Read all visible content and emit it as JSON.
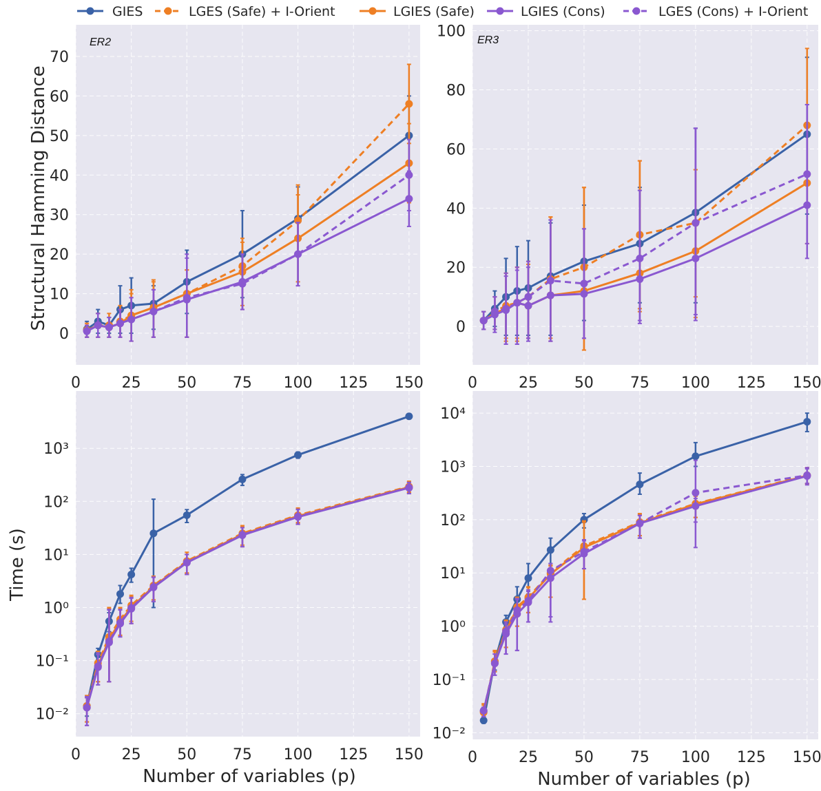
{
  "colors": {
    "blue": "#3a62a7",
    "orange": "#ee7f24",
    "purple": "#8a58d0",
    "plot_bg": "#e7e6f0",
    "grid": "#ffffff"
  },
  "legend": [
    {
      "label": "GIES",
      "color": "#3a62a7",
      "dashed": false
    },
    {
      "label": "LGES (Safe) + I-Orient",
      "color": "#ee7f24",
      "dashed": true
    },
    {
      "label": "LGIES (Safe)",
      "color": "#ee7f24",
      "dashed": false
    },
    {
      "label": "LGIES (Cons)",
      "color": "#8a58d0",
      "dashed": false
    },
    {
      "label": "LGES (Cons) + I-Orient",
      "color": "#8a58d0",
      "dashed": true
    }
  ],
  "labels": {
    "ylabel_top": "Structural Hamming Distance",
    "ylabel_bottom": "Time (s)",
    "xlabel": "Number of variables (p)"
  },
  "chart_data": [
    {
      "id": "er2_shd",
      "type": "line",
      "title": "ER2",
      "yscale": "linear",
      "xlim": [
        0,
        155
      ],
      "ylim": [
        -8,
        78
      ],
      "xticks": [
        0,
        25,
        50,
        75,
        100,
        125,
        150
      ],
      "yticks": [
        0,
        10,
        20,
        30,
        40,
        50,
        60,
        70
      ],
      "x": [
        5,
        10,
        15,
        20,
        25,
        35,
        50,
        75,
        100,
        150
      ],
      "series": [
        {
          "name": "GIES",
          "values": [
            1.0,
            3.0,
            2.0,
            6.0,
            7.0,
            7.5,
            13.0,
            20.0,
            29.0,
            50.0
          ],
          "lower": [
            -1,
            0,
            0,
            0,
            0,
            1,
            5,
            9,
            20,
            40
          ],
          "upper": [
            3,
            6,
            4,
            12,
            14,
            12,
            21,
            31,
            37,
            60
          ]
        },
        {
          "name": "LGES (Safe) + I-Orient",
          "values": [
            0.8,
            2.0,
            2.0,
            3.0,
            4.5,
            6.5,
            10.0,
            17.0,
            28.5,
            58.0
          ],
          "lower": [
            -1,
            -1,
            -1,
            -1,
            -2,
            -1,
            -1,
            6,
            20,
            48
          ],
          "upper": [
            2.5,
            5,
            5,
            7,
            11,
            13.5,
            16,
            24,
            37.5,
            68
          ]
        },
        {
          "name": "LGIES (Safe)",
          "values": [
            0.7,
            2.0,
            1.5,
            2.5,
            4.5,
            6.5,
            10.0,
            15.5,
            24.0,
            43.0
          ],
          "lower": [
            -1,
            -1,
            -1,
            -1,
            -2,
            -1,
            -1,
            7,
            13,
            33
          ],
          "upper": [
            2.5,
            5,
            4,
            6,
            10,
            13,
            16,
            23,
            35,
            53
          ]
        },
        {
          "name": "LGIES (Cons)",
          "values": [
            0.5,
            2.0,
            1.5,
            2.5,
            3.5,
            5.5,
            8.5,
            13.0,
            20.0,
            34.0
          ],
          "lower": [
            -1,
            -1,
            -1,
            -1,
            -2,
            -1,
            -1,
            6,
            12,
            27
          ],
          "upper": [
            2,
            5,
            4,
            6,
            9,
            11,
            20,
            20,
            28,
            41
          ]
        },
        {
          "name": "LGES (Cons) + I-Orient",
          "values": [
            0.6,
            2.0,
            1.5,
            2.5,
            3.5,
            5.5,
            9.0,
            12.5,
            20.0,
            40.0
          ],
          "lower": [
            -1,
            -1,
            -1,
            -1,
            -2,
            -1,
            -1,
            6,
            12,
            31
          ],
          "upper": [
            2,
            5,
            4,
            6,
            9,
            11,
            19,
            20,
            28,
            49
          ]
        }
      ]
    },
    {
      "id": "er3_shd",
      "type": "line",
      "title": "ER3",
      "yscale": "linear",
      "xlim": [
        0,
        155
      ],
      "ylim": [
        -13,
        102
      ],
      "xticks": [
        0,
        25,
        50,
        75,
        100,
        125,
        150
      ],
      "yticks": [
        0,
        20,
        40,
        60,
        80,
        100
      ],
      "x": [
        5,
        10,
        15,
        20,
        25,
        35,
        50,
        75,
        100,
        150
      ],
      "series": [
        {
          "name": "GIES",
          "values": [
            2,
            6,
            10,
            12,
            13,
            17,
            22,
            28,
            38.5,
            65
          ],
          "lower": [
            -1,
            0,
            -3,
            -3,
            -3,
            -3,
            2,
            8,
            8,
            38
          ],
          "upper": [
            5,
            12,
            23,
            27,
            29,
            35,
            41,
            47,
            67,
            91
          ]
        },
        {
          "name": "LGES (Safe) + I-Orient",
          "values": [
            2,
            5,
            7,
            8,
            10,
            16,
            20,
            31,
            35,
            68
          ],
          "lower": [
            -1,
            -1,
            -4,
            -4,
            -4,
            -4,
            -8,
            6,
            3,
            41
          ],
          "upper": [
            5,
            10,
            18,
            20,
            22,
            37,
            47,
            56,
            53,
            94
          ]
        },
        {
          "name": "LGIES (Safe)",
          "values": [
            2,
            4.5,
            6,
            8,
            7,
            10.5,
            12,
            18,
            25.5,
            48.5
          ],
          "lower": [
            -1,
            -1,
            -5,
            -5,
            -4,
            -5,
            -8,
            5,
            10,
            28
          ],
          "upper": [
            5,
            10,
            18,
            20,
            21,
            37,
            47,
            56,
            53,
            68
          ]
        },
        {
          "name": "LGIES (Cons)",
          "values": [
            2,
            4,
            5.5,
            8,
            7,
            10.5,
            11,
            16,
            23,
            41
          ],
          "lower": [
            -1,
            -2,
            -6,
            -6,
            -5,
            -5,
            -4,
            1,
            2,
            23
          ],
          "upper": [
            5,
            10,
            17,
            19,
            20,
            36,
            33,
            46,
            67,
            75
          ]
        },
        {
          "name": "LGES (Cons) + I-Orient",
          "values": [
            2,
            5,
            6,
            8,
            10,
            15.5,
            14.5,
            23,
            35,
            51.5
          ],
          "lower": [
            -1,
            -1,
            -6,
            -6,
            -4,
            -5,
            -4,
            2,
            4,
            28
          ],
          "upper": [
            5,
            10,
            18,
            20,
            22,
            36,
            33,
            46,
            67,
            75
          ]
        }
      ]
    },
    {
      "id": "er2_time",
      "type": "line",
      "title": "",
      "yscale": "log",
      "xlim": [
        0,
        155
      ],
      "ylim": [
        0.0037,
        12000
      ],
      "xticks": [
        0,
        25,
        50,
        75,
        100,
        125,
        150
      ],
      "yticks": [
        0.01,
        0.1,
        1,
        10,
        100,
        1000
      ],
      "x": [
        5,
        10,
        15,
        20,
        25,
        35,
        50,
        75,
        100,
        150
      ],
      "series": [
        {
          "name": "GIES",
          "values": [
            0.014,
            0.13,
            0.55,
            1.8,
            4.2,
            25,
            55,
            260,
            750,
            4000
          ],
          "lower": [
            0.009,
            0.1,
            0.35,
            1.2,
            3.0,
            1.0,
            40,
            200,
            650,
            3700
          ],
          "upper": [
            0.02,
            0.17,
            0.8,
            2.6,
            5.5,
            110,
            70,
            320,
            850,
            4300
          ]
        },
        {
          "name": "LGES (Safe) + I-Orient",
          "values": [
            0.014,
            0.09,
            0.28,
            0.6,
            1.1,
            2.6,
            7.5,
            25,
            55,
            190
          ],
          "lower": [
            0.007,
            0.04,
            0.04,
            0.3,
            0.55,
            1.4,
            4.5,
            15,
            40,
            150
          ],
          "upper": [
            0.022,
            0.15,
            1.0,
            1.0,
            1.7,
            3.9,
            11,
            35,
            75,
            240
          ]
        },
        {
          "name": "LGIES (Safe)",
          "values": [
            0.013,
            0.08,
            0.25,
            0.55,
            1.0,
            2.5,
            7.2,
            24,
            53,
            185
          ],
          "lower": [
            0.007,
            0.04,
            0.04,
            0.3,
            0.5,
            1.3,
            4.3,
            14,
            38,
            145
          ],
          "upper": [
            0.02,
            0.14,
            0.95,
            0.95,
            1.6,
            3.8,
            10,
            33,
            72,
            230
          ]
        },
        {
          "name": "LGIES (Cons)",
          "values": [
            0.013,
            0.075,
            0.22,
            0.5,
            0.95,
            2.4,
            7.0,
            23,
            51,
            180
          ],
          "lower": [
            0.006,
            0.035,
            0.04,
            0.28,
            0.5,
            1.3,
            4.2,
            14,
            37,
            140
          ],
          "upper": [
            0.02,
            0.13,
            0.9,
            0.9,
            1.5,
            3.7,
            10,
            32,
            70,
            225
          ]
        },
        {
          "name": "LGES (Cons) + I-Orient",
          "values": [
            0.013,
            0.078,
            0.23,
            0.52,
            0.98,
            2.45,
            7.1,
            23.5,
            52,
            182
          ],
          "lower": [
            0.006,
            0.035,
            0.04,
            0.28,
            0.5,
            1.3,
            4.2,
            14,
            37,
            140
          ],
          "upper": [
            0.021,
            0.14,
            0.92,
            0.92,
            1.55,
            3.75,
            10,
            32,
            71,
            228
          ]
        }
      ]
    },
    {
      "id": "er3_time",
      "type": "line",
      "title": "",
      "yscale": "log",
      "xlim": [
        0,
        155
      ],
      "ylim": [
        0.0075,
        26000
      ],
      "xticks": [
        0,
        25,
        50,
        75,
        100,
        125,
        150
      ],
      "yticks": [
        0.01,
        0.1,
        1,
        10,
        100,
        1000,
        10000
      ],
      "x": [
        5,
        10,
        15,
        20,
        25,
        35,
        50,
        75,
        100,
        150
      ],
      "series": [
        {
          "name": "GIES",
          "values": [
            0.017,
            0.22,
            1.2,
            3.2,
            8,
            27,
            100,
            460,
            1550,
            6900
          ],
          "lower": [
            0.015,
            0.15,
            0.7,
            1.8,
            4,
            15,
            70,
            300,
            1000,
            4500
          ],
          "upper": [
            0.02,
            0.3,
            1.6,
            5.5,
            15,
            45,
            130,
            750,
            2800,
            10000
          ]
        },
        {
          "name": "LGES (Safe) + I-Orient",
          "values": [
            0.025,
            0.22,
            0.85,
            2.3,
            3.5,
            10,
            32,
            90,
            200,
            680
          ],
          "lower": [
            0.02,
            0.14,
            0.4,
            1.0,
            1.8,
            3.5,
            3.2,
            50,
            110,
            480
          ],
          "upper": [
            0.035,
            0.35,
            1.3,
            3.5,
            5.5,
            14,
            95,
            130,
            280,
            950
          ]
        },
        {
          "name": "LGIES (Safe)",
          "values": [
            0.024,
            0.21,
            0.8,
            2.2,
            3.3,
            9.5,
            30,
            87,
            195,
            670
          ],
          "lower": [
            0.02,
            0.14,
            0.4,
            1.0,
            1.8,
            3.5,
            3.2,
            50,
            110,
            470
          ],
          "upper": [
            0.033,
            0.33,
            1.25,
            3.4,
            5.3,
            13.5,
            90,
            125,
            275,
            930
          ]
        },
        {
          "name": "LGIES (Cons)",
          "values": [
            0.026,
            0.2,
            0.72,
            1.7,
            2.8,
            8,
            23,
            85,
            180,
            660
          ],
          "lower": [
            0.02,
            0.12,
            0.3,
            0.35,
            1.2,
            1.2,
            12,
            45,
            90,
            450
          ],
          "upper": [
            0.03,
            0.3,
            1.1,
            3.2,
            4.5,
            12,
            40,
            120,
            250,
            900
          ]
        },
        {
          "name": "LGES (Cons) + I-Orient",
          "values": [
            0.026,
            0.2,
            0.8,
            2.0,
            3.0,
            11,
            25,
            85,
            320,
            680
          ],
          "lower": [
            0.02,
            0.12,
            0.3,
            0.35,
            1.2,
            1.5,
            12,
            45,
            30,
            480
          ],
          "upper": [
            0.03,
            0.3,
            1.2,
            3.3,
            4.8,
            15,
            42,
            120,
            1300,
            950
          ]
        }
      ]
    }
  ]
}
